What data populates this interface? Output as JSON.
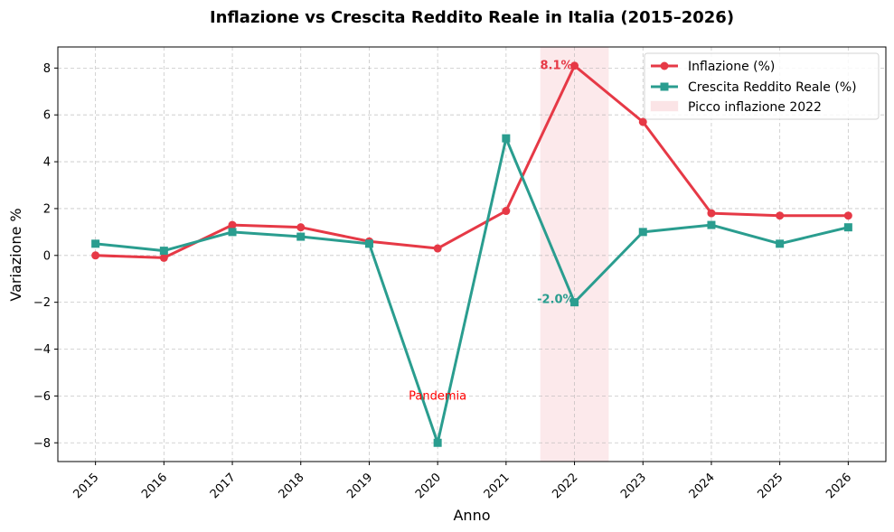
{
  "chart_data": {
    "type": "line",
    "title": "Inflazione vs Crescita Reddito Reale in Italia (2015–2026)",
    "xlabel": "Anno",
    "ylabel": "Variazione %",
    "x": [
      2015,
      2016,
      2017,
      2018,
      2019,
      2020,
      2021,
      2022,
      2023,
      2024,
      2025,
      2026
    ],
    "xlim": [
      2014.45,
      2026.55
    ],
    "ylim": [
      -8.8,
      8.9
    ],
    "yticks": [
      -8,
      -6,
      -4,
      -2,
      0,
      2,
      4,
      6,
      8
    ],
    "ytick_labels": [
      "−8",
      "−6",
      "−4",
      "−2",
      "0",
      "2",
      "4",
      "6",
      "8"
    ],
    "grid": true,
    "legend_position": "top-right",
    "series": [
      {
        "name": "Inflazione (%)",
        "color": "#e63946",
        "marker": "circle",
        "values": [
          0.0,
          -0.1,
          1.3,
          1.2,
          0.6,
          0.3,
          1.9,
          8.1,
          5.7,
          1.8,
          1.7,
          1.7
        ]
      },
      {
        "name": "Crescita Reddito Reale (%)",
        "color": "#2a9d8f",
        "marker": "square",
        "values": [
          0.5,
          0.2,
          1.0,
          0.8,
          0.5,
          -8.0,
          5.0,
          -2.0,
          1.0,
          1.3,
          0.5,
          1.2
        ]
      }
    ],
    "span": {
      "name": "Picco inflazione 2022",
      "from": 2021.5,
      "to": 2022.5,
      "color": "#f4a7b0"
    },
    "annotations": [
      {
        "text": "8.1%",
        "x": 2022,
        "y": 8.1,
        "color": "#e63946"
      },
      {
        "text": "-2.0%",
        "x": 2022,
        "y": -2.0,
        "color": "#2a9d8f"
      },
      {
        "text": "Pandemia",
        "x": 2020,
        "y": -6.0,
        "color": "#ff0000"
      }
    ]
  }
}
